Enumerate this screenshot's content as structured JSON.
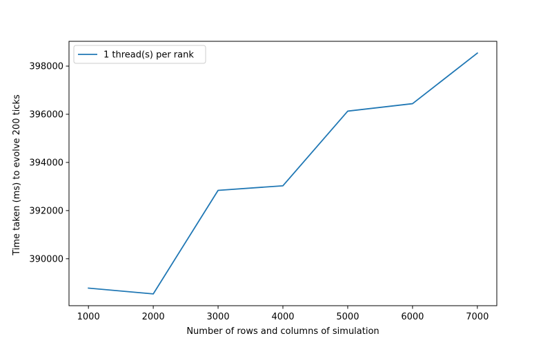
{
  "chart_data": {
    "type": "line",
    "title": "",
    "xlabel": "Number of rows and columns of simulation",
    "ylabel": "Time taken (ms) to evolve 200 ticks",
    "x": [
      1000,
      2000,
      3000,
      4000,
      5000,
      6000,
      7000
    ],
    "series": [
      {
        "name": "1 thread(s) per rank",
        "color": "#1f77b4",
        "values": [
          388780,
          388540,
          392840,
          393030,
          396130,
          396440,
          398540
        ]
      }
    ],
    "xlim": [
      700,
      7300
    ],
    "ylim": [
      388050,
      399030
    ],
    "x_ticks": [
      1000,
      2000,
      3000,
      4000,
      5000,
      6000,
      7000
    ],
    "y_ticks": [
      390000,
      392000,
      394000,
      396000,
      398000
    ],
    "grid": false,
    "legend_placement": "upper-left"
  }
}
